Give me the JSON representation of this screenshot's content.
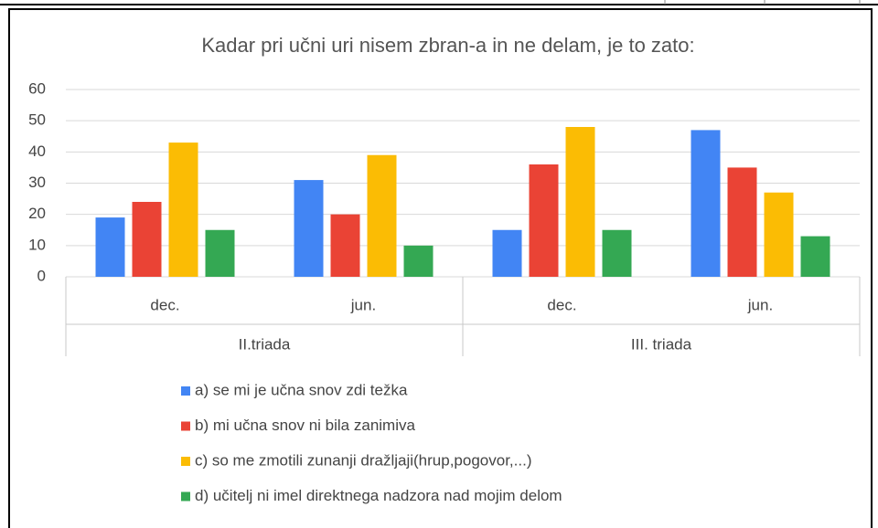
{
  "chart_data": {
    "type": "bar",
    "title": "Kadar pri učni uri nisem zbran-a in ne delam, je to zato:",
    "categories": [
      "dec.",
      "jun.",
      "dec.",
      "jun."
    ],
    "groups": [
      "II.triada",
      "III. triada"
    ],
    "series": [
      {
        "name": "a) se mi je učna snov zdi težka",
        "color": "#4285f4",
        "values": [
          19,
          31,
          15,
          47
        ]
      },
      {
        "name": "b) mi učna snov ni bila zanimiva",
        "color": "#ea4335",
        "values": [
          24,
          20,
          36,
          35
        ]
      },
      {
        "name": "c) so me zmotili zunanji dražljaji(hrup,pogovor,...)",
        "color": "#fbbc04",
        "values": [
          43,
          39,
          48,
          27
        ]
      },
      {
        "name": "d) učitelj ni imel direktnega nadzora nad mojim delom",
        "color": "#34a853",
        "values": [
          15,
          10,
          15,
          13
        ]
      }
    ],
    "ylim": [
      0,
      60
    ],
    "yticks": [
      0,
      10,
      20,
      30,
      40,
      50,
      60
    ],
    "grid": true,
    "legend": "bottom"
  }
}
